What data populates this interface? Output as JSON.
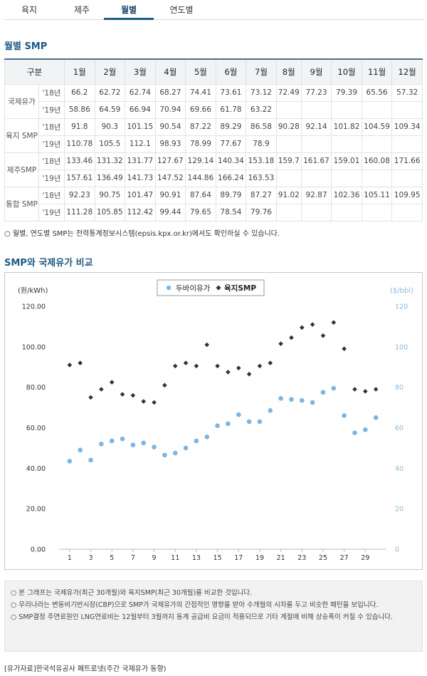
{
  "tabs": [
    "육지",
    "제주",
    "월별",
    "연도별"
  ],
  "active_tab": 2,
  "monthly_section": {
    "title": "월별 SMP"
  },
  "table": {
    "header": [
      "구분",
      "1월",
      "2월",
      "3월",
      "4월",
      "5월",
      "6월",
      "7월",
      "8월",
      "9월",
      "10월",
      "11월",
      "12월"
    ],
    "groups": [
      {
        "label": "국제유가",
        "rows": [
          {
            "year": "'18년",
            "values": [
              "66.2",
              "62.72",
              "62.74",
              "68.27",
              "74.41",
              "73.61",
              "73.12",
              "72.49",
              "77.23",
              "79.39",
              "65.56",
              "57.32"
            ]
          },
          {
            "year": "'19년",
            "values": [
              "58.86",
              "64.59",
              "66.94",
              "70.94",
              "69.66",
              "61.78",
              "63.22",
              "",
              "",
              "",
              "",
              ""
            ]
          }
        ]
      },
      {
        "label": "육지 SMP",
        "rows": [
          {
            "year": "'18년",
            "values": [
              "91.8",
              "90.3",
              "101.15",
              "90.54",
              "87.22",
              "89.29",
              "86.58",
              "90.28",
              "92.14",
              "101.82",
              "104.59",
              "109.34"
            ]
          },
          {
            "year": "'19년",
            "values": [
              "110.78",
              "105.5",
              "112.1",
              "98.93",
              "78.99",
              "77.67",
              "78.9",
              "",
              "",
              "",
              "",
              ""
            ]
          }
        ]
      },
      {
        "label": "제주SMP",
        "rows": [
          {
            "year": "'18년",
            "values": [
              "133.46",
              "131.32",
              "131.77",
              "127.67",
              "129.14",
              "140.34",
              "153.18",
              "159.7",
              "161.67",
              "159.01",
              "160.08",
              "171.66"
            ]
          },
          {
            "year": "'19년",
            "values": [
              "157.61",
              "136.49",
              "141.73",
              "147.52",
              "144.86",
              "166.24",
              "163.53",
              "",
              "",
              "",
              "",
              ""
            ]
          }
        ]
      },
      {
        "label": "통합 SMP",
        "rows": [
          {
            "year": "'18년",
            "values": [
              "92.23",
              "90.75",
              "101.47",
              "90.91",
              "87.64",
              "89.79",
              "87.27",
              "91.02",
              "92.87",
              "102.36",
              "105.11",
              "109.95"
            ]
          },
          {
            "year": "'19년",
            "values": [
              "111.28",
              "105.85",
              "112.42",
              "99.44",
              "79.65",
              "78.54",
              "79.76",
              "",
              "",
              "",
              "",
              ""
            ]
          }
        ]
      }
    ]
  },
  "table_note": "○ 월별, 연도별 SMP는 전력통계정보시스템(epsis.kpx.or.kr)에서도 확인하실 수 있습니다.",
  "compare_section": {
    "title": "SMP와 국제유가 비교"
  },
  "colors": {
    "oil": "#7cb5e4",
    "smp": "#333333",
    "accent": "#1e5a84",
    "right_axis": "#8ab8dc"
  },
  "chart_data": {
    "type": "scatter",
    "left_unit": "(원/kWh)",
    "right_unit": "($/bbl)",
    "left_ticks": [
      "0.00",
      "20.00",
      "40.00",
      "60.00",
      "80.00",
      "100.00",
      "120.00"
    ],
    "right_ticks": [
      "0",
      "20",
      "40",
      "60",
      "80",
      "100",
      "120"
    ],
    "ylim": [
      0,
      120
    ],
    "xlim": [
      0,
      31
    ],
    "x_ticks": [
      "1",
      "3",
      "5",
      "7",
      "9",
      "11",
      "13",
      "15",
      "17",
      "19",
      "21",
      "23",
      "25",
      "27",
      "29"
    ],
    "x": [
      1,
      2,
      3,
      4,
      5,
      6,
      7,
      8,
      9,
      10,
      11,
      12,
      13,
      14,
      15,
      16,
      17,
      18,
      19,
      20,
      21,
      22,
      23,
      24,
      25,
      26,
      27,
      28,
      29,
      30
    ],
    "series": [
      {
        "name": "두바이유가",
        "marker": "circle",
        "values": [
          43.5,
          49,
          44,
          52,
          53.5,
          54.5,
          51.5,
          52.5,
          50.5,
          46.5,
          47.5,
          50,
          53.5,
          55.5,
          61,
          62,
          66.5,
          63,
          63,
          68.5,
          74.5,
          74,
          73.5,
          72.5,
          77.5,
          79.5,
          66,
          57.5,
          59,
          65
        ]
      },
      {
        "name": "육지SMP",
        "marker": "diamond",
        "values": [
          91,
          92,
          75,
          79,
          82.5,
          76.5,
          76,
          73,
          72.5,
          81,
          90.5,
          92,
          90.5,
          101,
          90.5,
          87.5,
          89.5,
          86.5,
          90.5,
          92,
          101.5,
          104.5,
          109.5,
          111,
          105.5,
          112,
          99,
          79,
          78,
          79
        ]
      }
    ]
  },
  "notes": [
    "○ 본 그래프는 국제유가(최근 30개월)와 육지SMP(최근 30개월)를 비교한 것입니다.",
    "○ 우리나라는 변동비기반시장(CBP)으로 SMP가 국제유가의 간접적인 영향을 받아 수개월의 시차를 두고 비슷한 패턴을 보입니다.",
    "○ SMP결정 주연료원인 LNG연료비는 12월부터 3월까지 동계 공급비 요금이 적용되므로 기타 계절에 비해 상승폭이 커질 수 있습니다."
  ],
  "source": "[유가자료]한국석유공사 페트로넷(주간 국제유가 동향)"
}
